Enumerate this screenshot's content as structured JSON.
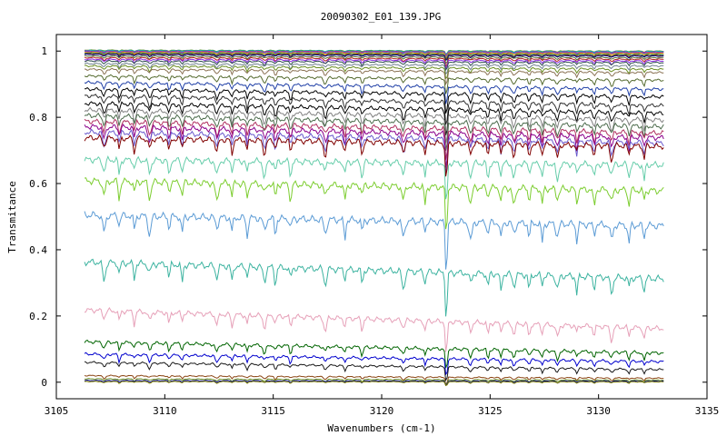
{
  "chart_data": {
    "type": "line",
    "title": "20090302_E01_139.JPG",
    "xlabel": "Wavenumbers (cm-1)",
    "ylabel": "Transmitance",
    "xlim": [
      3105,
      3135
    ],
    "ylim": [
      -0.05,
      1.05
    ],
    "x_ticks": [
      3105,
      3110,
      3115,
      3120,
      3125,
      3130,
      3135
    ],
    "y_ticks": [
      0,
      0.2,
      0.4,
      0.6,
      0.8,
      1
    ],
    "x_tick_labels": [
      "3105",
      "3110",
      "3115",
      "3120",
      "3125",
      "3130",
      "3135"
    ],
    "y_tick_labels": [
      "0",
      "0.2",
      "0.4",
      "0.6",
      "0.8",
      "1"
    ],
    "grid": false,
    "legend": "none",
    "x_range": [
      3106.3,
      3133.0
    ],
    "absorption_lines": [
      3107.2,
      3107.9,
      3108.6,
      3109.3,
      3110.2,
      3110.8,
      3112.4,
      3113.1,
      3113.8,
      3114.6,
      3115.1,
      3115.8,
      3117.4,
      3118.3,
      3119.1,
      3121.0,
      3122.0,
      3122.98,
      3124.1,
      3124.9,
      3125.5,
      3126.1,
      3126.8,
      3127.4,
      3128.1,
      3129.0,
      3129.8,
      3130.6,
      3131.4,
      3132.1
    ],
    "series": [
      {
        "start": 1.003,
        "end": 1.0,
        "color": "#6b8e23"
      },
      {
        "start": 1.002,
        "end": 0.999,
        "color": "#00bfbf"
      },
      {
        "start": 1.0,
        "end": 0.997,
        "color": "#c71585"
      },
      {
        "start": 0.998,
        "end": 0.995,
        "color": "#4169e1"
      },
      {
        "start": 0.996,
        "end": 0.993,
        "color": "#ff8c00"
      },
      {
        "start": 0.994,
        "end": 0.99,
        "color": "#2e8b57"
      },
      {
        "start": 0.992,
        "end": 0.987,
        "color": "#8b4513"
      },
      {
        "start": 0.99,
        "end": 0.985,
        "color": "#000080"
      },
      {
        "start": 0.985,
        "end": 0.98,
        "color": "#556b2f"
      },
      {
        "start": 0.98,
        "end": 0.975,
        "color": "#b22222"
      },
      {
        "start": 0.975,
        "end": 0.97,
        "color": "#8a2be2"
      },
      {
        "start": 0.97,
        "end": 0.965,
        "color": "#2f4f4f"
      },
      {
        "start": 0.962,
        "end": 0.955,
        "color": "#708090"
      },
      {
        "start": 0.955,
        "end": 0.945,
        "color": "#6b8e23"
      },
      {
        "start": 0.945,
        "end": 0.935,
        "color": "#8b7355"
      },
      {
        "start": 0.925,
        "end": 0.912,
        "color": "#556b2f"
      },
      {
        "start": 0.905,
        "end": 0.885,
        "color": "#1f3fa6"
      },
      {
        "start": 0.885,
        "end": 0.862,
        "color": "#000000"
      },
      {
        "start": 0.865,
        "end": 0.835,
        "color": "#2f2f2f"
      },
      {
        "start": 0.842,
        "end": 0.812,
        "color": "#000000"
      },
      {
        "start": 0.822,
        "end": 0.792,
        "color": "#808080"
      },
      {
        "start": 0.805,
        "end": 0.772,
        "color": "#4b6b4b"
      },
      {
        "start": 0.788,
        "end": 0.752,
        "color": "#b03060"
      },
      {
        "start": 0.772,
        "end": 0.738,
        "color": "#8b008b"
      },
      {
        "start": 0.755,
        "end": 0.722,
        "color": "#6a5acd"
      },
      {
        "start": 0.738,
        "end": 0.712,
        "color": "#800000"
      },
      {
        "start": 0.672,
        "end": 0.656,
        "color": "#66cdaa"
      },
      {
        "start": 0.608,
        "end": 0.578,
        "color": "#7ccd2f"
      },
      {
        "start": 0.505,
        "end": 0.472,
        "color": "#5b9bd5"
      },
      {
        "start": 0.363,
        "end": 0.312,
        "color": "#3cb3a0"
      },
      {
        "start": 0.218,
        "end": 0.162,
        "color": "#e6a0b8"
      },
      {
        "start": 0.122,
        "end": 0.088,
        "color": "#006400"
      },
      {
        "start": 0.085,
        "end": 0.062,
        "color": "#0000cd"
      },
      {
        "start": 0.06,
        "end": 0.038,
        "color": "#1a1a1a"
      },
      {
        "start": 0.02,
        "end": 0.012,
        "color": "#8b4513"
      },
      {
        "start": 0.01,
        "end": 0.006,
        "color": "#6b8e23"
      },
      {
        "start": 0.005,
        "end": 0.003,
        "color": "#00008b"
      },
      {
        "start": 0.002,
        "end": 0.001,
        "color": "#808000"
      }
    ]
  }
}
